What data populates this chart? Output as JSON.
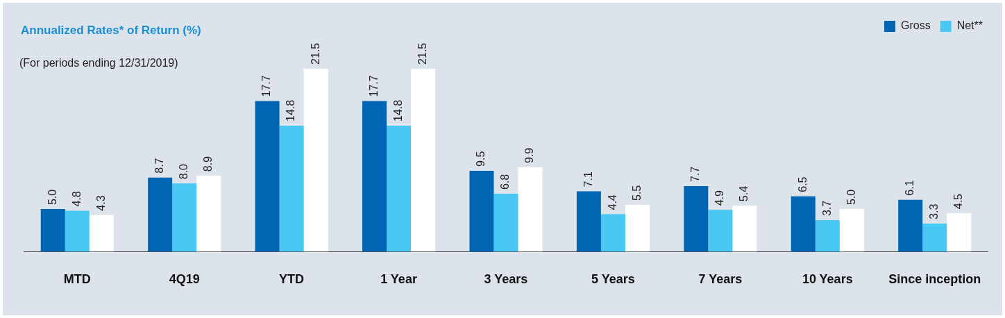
{
  "chart_data": {
    "type": "bar",
    "title": "Annualized Rates* of Return (%)",
    "subtitle": "(For periods ending 12/31/2019)",
    "categories": [
      "MTD",
      "4Q19",
      "YTD",
      "1 Year",
      "3 Years",
      "5 Years",
      "7 Years",
      "10 Years",
      "Since inception"
    ],
    "series": [
      {
        "name": "Gross",
        "color": "#0066b3",
        "values": [
          5.0,
          8.7,
          17.7,
          17.7,
          9.5,
          7.1,
          7.7,
          6.5,
          6.1
        ],
        "value_labels": [
          "5.0",
          "8.7",
          "17.7",
          "17.7",
          "9.5",
          "7.1",
          "7.7",
          "6.5",
          "6.1"
        ]
      },
      {
        "name": "Net**",
        "color": "#48c8f2",
        "values": [
          4.8,
          8.0,
          14.8,
          14.8,
          6.8,
          4.4,
          4.9,
          3.7,
          3.3
        ],
        "value_labels": [
          "4.8",
          "8.0",
          "14.8",
          "14.8",
          "6.8",
          "4.4",
          "4.9",
          "3.7",
          "3.3"
        ]
      },
      {
        "color": "#ffffff",
        "values": [
          4.3,
          8.9,
          21.5,
          21.5,
          9.9,
          5.5,
          5.4,
          5.0,
          4.5
        ],
        "value_labels": [
          "4.3",
          "8.9",
          "21.5",
          "21.5",
          "9.9",
          "5.5",
          "5.4",
          "5.0",
          "4.5"
        ]
      }
    ],
    "legend": "top right",
    "grid": false
  }
}
